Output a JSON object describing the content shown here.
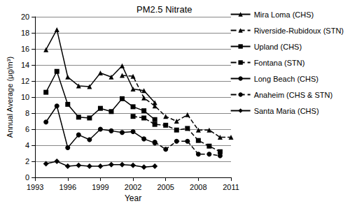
{
  "chart_data": {
    "type": "line",
    "title": "PM2.5 Nitrate",
    "x_label": "Year",
    "y_label": "Annual Average (μg/m³)",
    "x": [
      1993,
      1994,
      1995,
      1996,
      1997,
      1998,
      1999,
      2000,
      2001,
      2002,
      2003,
      2004,
      2005,
      2006,
      2007,
      2008,
      2009,
      2010,
      2011
    ],
    "series": [
      {
        "name": "Mira Loma (CHS)",
        "color": "#000000",
        "marker": "triangle",
        "line_style": "solid",
        "values": [
          null,
          15.9,
          18.4,
          12.5,
          11.4,
          11.3,
          13.0,
          12.5,
          13.9,
          11.0,
          10.8,
          9.3,
          null,
          null,
          null,
          null,
          null,
          null,
          null
        ]
      },
      {
        "name": "Riverside-Rubidoux (STN)",
        "color": "#000000",
        "marker": "triangle",
        "line_style": "dashed",
        "values": [
          null,
          null,
          null,
          null,
          null,
          null,
          null,
          null,
          12.7,
          12.6,
          9.9,
          8.9,
          7.6,
          7.0,
          7.8,
          5.9,
          5.9,
          5.0,
          5.0
        ]
      },
      {
        "name": "Upland (CHS)",
        "color": "#000000",
        "marker": "square",
        "line_style": "solid",
        "values": [
          null,
          10.6,
          13.2,
          9.1,
          7.5,
          7.4,
          8.6,
          8.2,
          9.8,
          8.8,
          8.3,
          7.2,
          null,
          null,
          null,
          null,
          null,
          null,
          null
        ]
      },
      {
        "name": "Fontana (STN)",
        "color": "#000000",
        "marker": "square",
        "line_style": "dashed",
        "values": [
          null,
          null,
          null,
          null,
          null,
          null,
          null,
          null,
          null,
          7.6,
          7.4,
          6.6,
          6.5,
          5.9,
          6.1,
          4.6,
          3.9,
          3.2,
          null
        ]
      },
      {
        "name": "Long Beach (CHS)",
        "color": "#000000",
        "marker": "circle",
        "line_style": "solid",
        "values": [
          null,
          6.9,
          8.9,
          3.7,
          5.3,
          4.7,
          6.0,
          5.8,
          5.6,
          5.7,
          4.8,
          4.3,
          null,
          null,
          null,
          null,
          null,
          null,
          null
        ]
      },
      {
        "name": "Anaheim (CHS & STN)",
        "color": "#000000",
        "marker": "circle",
        "line_style": "dashed",
        "values": [
          null,
          null,
          null,
          null,
          null,
          null,
          null,
          null,
          null,
          null,
          null,
          4.4,
          3.5,
          4.5,
          4.5,
          2.9,
          2.9,
          2.7,
          null
        ]
      },
      {
        "name": "Santa Maria (CHS)",
        "color": "#000000",
        "marker": "diamond",
        "line_style": "solid",
        "values": [
          null,
          1.7,
          2.0,
          1.4,
          1.5,
          1.4,
          1.4,
          1.6,
          1.6,
          1.5,
          1.3,
          1.4,
          null,
          null,
          null,
          null,
          null,
          null,
          null
        ]
      }
    ],
    "xlim": [
      1993,
      2011
    ],
    "xticks": [
      1993,
      1996,
      1999,
      2002,
      2005,
      2008,
      2011
    ],
    "ylim": [
      0,
      20
    ],
    "yticks": [
      0,
      2,
      4,
      6,
      8,
      10,
      12,
      14,
      16,
      18,
      20
    ],
    "grid": true,
    "legend": "right"
  }
}
